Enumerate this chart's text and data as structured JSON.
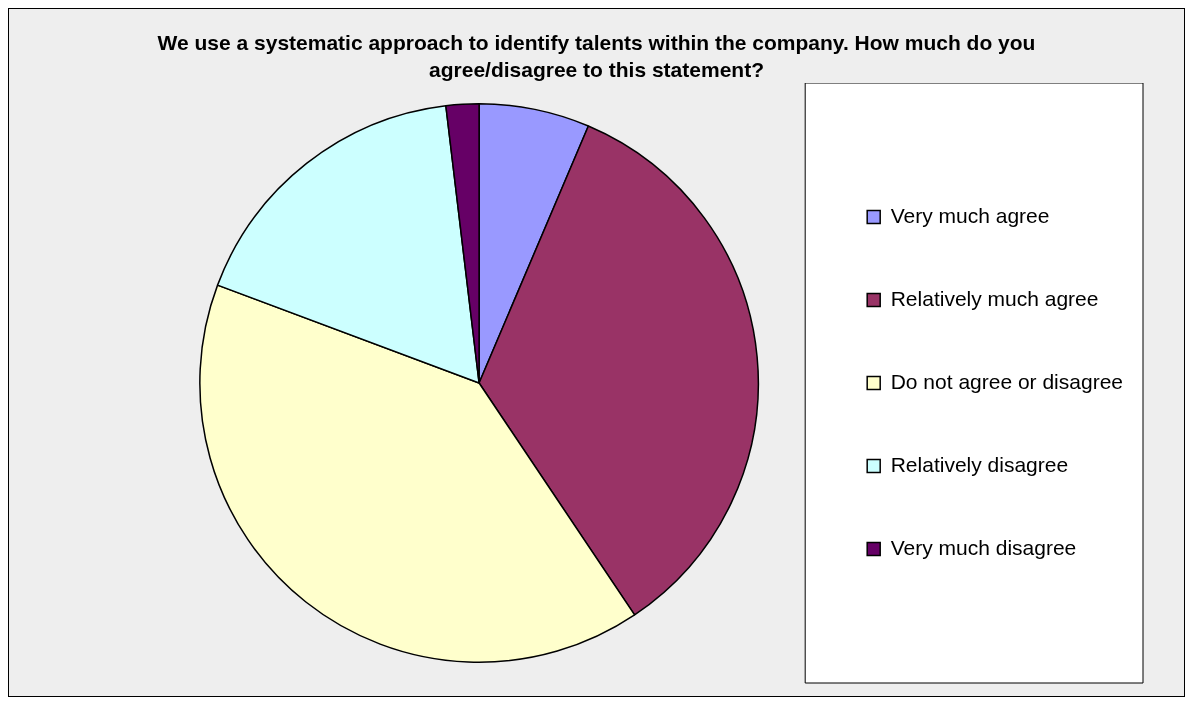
{
  "chart_data": {
    "type": "pie",
    "title": "We use a systematic approach to identify talents within the company. How much do you agree/disagree to this statement?",
    "categories": [
      "Very much agree",
      "Relatively much agree",
      "Do not agree or disagree",
      "Relatively disagree",
      "Very much disagree"
    ],
    "values": [
      6.4,
      34.2,
      40.1,
      17.4,
      1.9
    ],
    "colors": [
      "#9999ff",
      "#993366",
      "#ffffcc",
      "#ccffff",
      "#660066"
    ],
    "legend": "right"
  }
}
